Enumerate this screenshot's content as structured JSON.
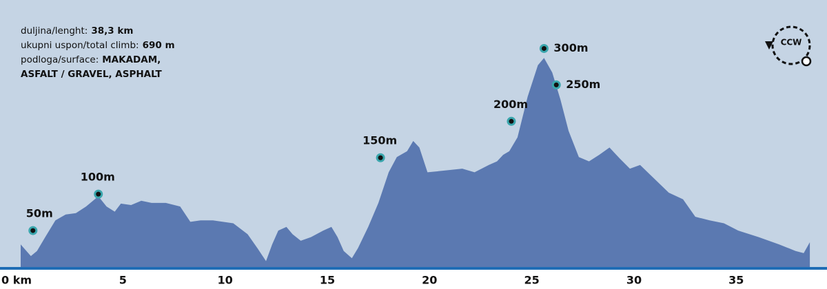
{
  "chart_data": {
    "type": "area",
    "info": [
      {
        "label": "duljina/lenght:",
        "value": [
          "38,3 km"
        ]
      },
      {
        "label": "ukupni uspon/total climb:",
        "value": [
          "690 m"
        ]
      },
      {
        "label": "podloga/surface:",
        "value": [
          "MAKADAM,",
          "ASFALT / GRAVEL, ASPHALT"
        ]
      }
    ],
    "direction": "CCW",
    "x": [
      0,
      0.5,
      0.8,
      1.2,
      1.7,
      2.2,
      2.7,
      3.2,
      3.8,
      4.2,
      4.6,
      4.9,
      5.4,
      5.9,
      6.4,
      7.1,
      7.8,
      8.3,
      8.8,
      9.4,
      10.4,
      11.1,
      11.6,
      12.0,
      12.3,
      12.6,
      13.0,
      13.3,
      13.7,
      14.2,
      14.8,
      15.2,
      15.5,
      15.8,
      16.2,
      16.5,
      17.0,
      17.5,
      18.0,
      18.4,
      18.9,
      19.2,
      19.5,
      19.9,
      20.6,
      21.6,
      22.2,
      22.9,
      23.3,
      23.6,
      23.9,
      24.3,
      24.8,
      25.3,
      25.6,
      26.0,
      26.4,
      26.8,
      27.3,
      27.8,
      28.3,
      28.8,
      29.3,
      29.8,
      30.3,
      31.0,
      31.7,
      32.4,
      33.0,
      33.7,
      34.4,
      35.1,
      36.1,
      37.1,
      37.9,
      38.3,
      38.6
    ],
    "values": [
      31,
      15,
      22,
      41,
      64,
      72,
      74,
      83,
      97,
      83,
      76,
      87,
      85,
      91,
      88,
      88,
      83,
      62,
      64,
      64,
      60,
      45,
      25,
      8,
      31,
      50,
      55,
      45,
      36,
      41,
      50,
      55,
      41,
      22,
      12,
      26,
      55,
      88,
      130,
      151,
      159,
      173,
      164,
      130,
      132,
      135,
      130,
      140,
      145,
      154,
      159,
      178,
      234,
      277,
      287,
      267,
      230,
      187,
      151,
      145,
      154,
      164,
      149,
      135,
      140,
      121,
      102,
      93,
      69,
      64,
      60,
      50,
      41,
      31,
      22,
      19,
      34
    ],
    "color": "#5b79b1",
    "markers": [
      {
        "x": 0.6,
        "value": 50,
        "label": "50m"
      },
      {
        "x": 3.8,
        "value": 100,
        "label": "100m"
      },
      {
        "x": 17.6,
        "value": 150,
        "label": "150m"
      },
      {
        "x": 24.0,
        "value": 200,
        "label": "200m"
      },
      {
        "x": 26.2,
        "value": 250,
        "label": "250m"
      },
      {
        "x": 25.6,
        "value": 300,
        "label": "300m"
      }
    ],
    "xlim": [
      0,
      38.8
    ],
    "ylim": [
      0,
      325
    ],
    "xticks": [
      {
        "value": 0,
        "label": "0 km"
      },
      5,
      10,
      15,
      20,
      25,
      30,
      35
    ]
  }
}
